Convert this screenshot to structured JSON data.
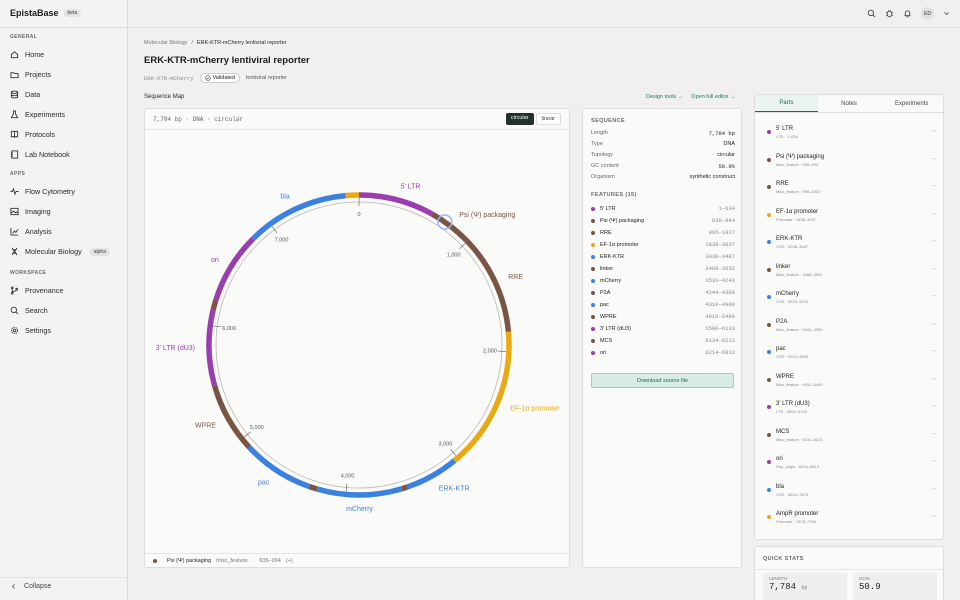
{
  "app": {
    "name": "EpistaBase",
    "badge": "beta"
  },
  "sidebar": {
    "sections": [
      {
        "label": "GENERAL",
        "items": [
          {
            "label": "Home",
            "icon": "home-icon"
          },
          {
            "label": "Projects",
            "icon": "folder-icon"
          },
          {
            "label": "Data",
            "icon": "database-icon"
          },
          {
            "label": "Experiments",
            "icon": "flask-icon"
          },
          {
            "label": "Protocols",
            "icon": "book-icon"
          },
          {
            "label": "Lab Notebook",
            "icon": "notebook-icon"
          }
        ]
      },
      {
        "label": "APPS",
        "items": [
          {
            "label": "Flow Cytometry",
            "icon": "pulse-icon"
          },
          {
            "label": "Imaging",
            "icon": "image-icon"
          },
          {
            "label": "Analysis",
            "icon": "chart-icon"
          },
          {
            "label": "Molecular Biology",
            "icon": "dna-icon",
            "badge": "alpha"
          }
        ]
      },
      {
        "label": "WORKSPACE",
        "items": [
          {
            "label": "Provenance",
            "icon": "branch-icon"
          },
          {
            "label": "Search",
            "icon": "search-icon"
          },
          {
            "label": "Settings",
            "icon": "gear-icon"
          }
        ]
      }
    ],
    "collapse_label": "Collapse"
  },
  "header": {
    "avatar": "ED"
  },
  "breadcrumb": {
    "parent": "Molecular Biology",
    "separator": "/",
    "current": "ERK-KTR-mCherry lentiviral reporter"
  },
  "page": {
    "title": "ERK-KTR-mCherry lentiviral reporter",
    "id": "ERK-KTR-mCherry",
    "status": "Validated",
    "type": "lentiviral reporter"
  },
  "sequence_map": {
    "label": "Sequence Map",
    "design_tools": "Design tools →",
    "full_editor": "Open full editor →",
    "info": "7,784 bp · DNA · circular",
    "toggle": {
      "circular": "circular",
      "linear": "linear"
    },
    "total_bp": 7784,
    "tick_labels": [
      "0",
      "1,000",
      "2,000",
      "3,000",
      "4,000",
      "5,000",
      "6,000",
      "7,000"
    ],
    "selected": {
      "name": "Psi (Ψ) packaging",
      "type": "misc_feature",
      "range": "635–994",
      "strand": "(+)"
    }
  },
  "sequence": {
    "title": "SEQUENCE",
    "rows": [
      {
        "k": "Length",
        "v": "7,784 bp"
      },
      {
        "k": "Type",
        "v": "DNA"
      },
      {
        "k": "Topology",
        "v": "circular"
      },
      {
        "k": "GC content",
        "v": "50.9%"
      },
      {
        "k": "Organism",
        "v": "synthetic construct"
      }
    ],
    "features_title": "FEATURES (15)",
    "download": "Download source file"
  },
  "features": [
    {
      "name": "5' LTR",
      "kind": "LTR",
      "start": 1,
      "end": 634,
      "range": "1–634",
      "color": "#9b3db0"
    },
    {
      "name": "Psi (Ψ) packaging",
      "kind": "Misc_feature",
      "start": 635,
      "end": 994,
      "range": "635–994",
      "color": "#7a5544"
    },
    {
      "name": "RRE",
      "kind": "Misc_feature",
      "start": 995,
      "end": 1837,
      "range": "995–1837",
      "color": "#7a5544"
    },
    {
      "name": "EF-1α promoter",
      "kind": "Promoter",
      "start": 1838,
      "end": 3037,
      "range": "1838–3037",
      "color": "#e8a913"
    },
    {
      "name": "ERK-KTR",
      "kind": "CDS",
      "start": 3038,
      "end": 3487,
      "range": "3038–3487",
      "color": "#3b82e0"
    },
    {
      "name": "linker",
      "kind": "Misc_feature",
      "start": 3488,
      "end": 3532,
      "range": "3488–3532",
      "color": "#7a5544"
    },
    {
      "name": "mCherry",
      "kind": "CDS",
      "start": 3533,
      "end": 4243,
      "range": "3533–4243",
      "color": "#3b82e0"
    },
    {
      "name": "P2A",
      "kind": "Misc_feature",
      "start": 4244,
      "end": 4309,
      "range": "4244–4309",
      "color": "#7a5544"
    },
    {
      "name": "pac",
      "kind": "CDS",
      "start": 4310,
      "end": 4909,
      "range": "4310–4909",
      "color": "#3b82e0"
    },
    {
      "name": "WPRE",
      "kind": "Misc_feature",
      "start": 4910,
      "end": 5499,
      "range": "4910–5499",
      "color": "#7a5544"
    },
    {
      "name": "3' LTR (dU3)",
      "kind": "LTR",
      "start": 5500,
      "end": 6133,
      "range": "5500–6133",
      "color": "#9b3db0"
    },
    {
      "name": "MCS",
      "kind": "Misc_feature",
      "start": 6134,
      "end": 6213,
      "range": "6134–6213",
      "color": "#7a5544"
    },
    {
      "name": "ori",
      "kind": "Rep_origin",
      "start": 6214,
      "end": 6813,
      "range": "6214–6813",
      "color": "#9b3db0"
    },
    {
      "name": "bla",
      "kind": "CDS",
      "start": 6814,
      "end": 7674,
      "range": "6814–7674",
      "color": "#3b82e0"
    },
    {
      "name": "AmpR promoter",
      "kind": "Promoter",
      "start": 7675,
      "end": 7784,
      "range": "7675–7784",
      "color": "#e8a913"
    }
  ],
  "map_labels": [
    "5' LTR",
    "Psi (Ψ) packaging",
    "RRE",
    "EF-1α promoter",
    "ERK-KTR",
    "mCherry",
    "pac",
    "WPRE",
    "3' LTR (dU3)",
    "ori",
    "bla"
  ],
  "tabs": [
    "Parts",
    "Notes",
    "Experiments"
  ],
  "quick_stats": {
    "title": "QUICK STATS",
    "length_label": "LENGTH",
    "length_value": "7,784",
    "length_unit": "bp",
    "gc_label": "GC%",
    "gc_value": "50.9"
  }
}
